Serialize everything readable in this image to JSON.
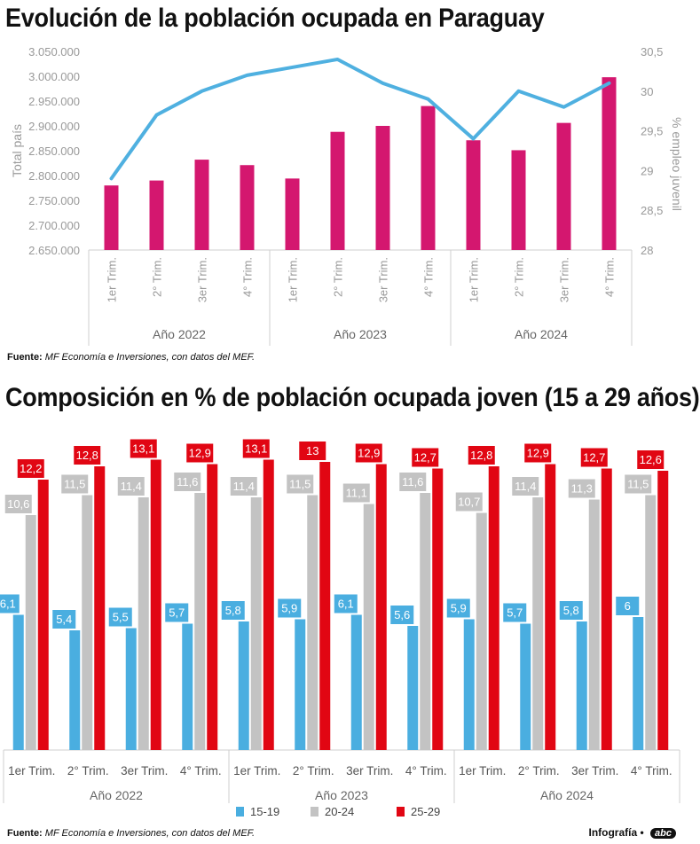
{
  "title1": "Evolución de la población ocupada en Paraguay",
  "title2": "Composición en % de población ocupada joven (15 a 29 años)",
  "source": {
    "label": "Fuente:",
    "text": "MF Economía e Inversiones, con datos del MEF."
  },
  "credit": {
    "label": "Infografía",
    "brand": "abc"
  },
  "chart_data": [
    {
      "type": "bar",
      "categories": [
        "1er Trim.",
        "2° Trim.",
        "3er Trim.",
        "4° Trim.",
        "1er Trim.",
        "2° Trim.",
        "3er Trim.",
        "4° Trim.",
        "1er Trim.",
        "2° Trim.",
        "3er Trim.",
        "4° Trim."
      ],
      "groups": [
        "Año 2022",
        "Año 2023",
        "Año 2024"
      ],
      "ylabel": "Total país",
      "y2label": "% empleo juvenil",
      "ylim": [
        2650000,
        3050000
      ],
      "y2lim": [
        28,
        30.5
      ],
      "yticks": [
        "3.050.000",
        "3.000.000",
        "2.950.000",
        "2.900.000",
        "2.850.000",
        "2.800.000",
        "2.750.000",
        "2.700.000",
        "2.650.000"
      ],
      "y2ticks": [
        "30,5",
        "30",
        "29,5",
        "29",
        "28,5",
        "28"
      ],
      "series": [
        {
          "type": "bar",
          "axis": "left",
          "color": "#d4176f",
          "values": [
            2780000,
            2790000,
            2832000,
            2821000,
            2794000,
            2888000,
            2900000,
            2940000,
            2871000,
            2851000,
            2906000,
            2998000
          ]
        },
        {
          "type": "line",
          "axis": "right",
          "color": "#4fb0e0",
          "values": [
            28.9,
            29.7,
            30.0,
            30.2,
            30.3,
            30.4,
            30.1,
            29.9,
            29.4,
            30.0,
            29.8,
            30.1
          ]
        }
      ],
      "grid": false
    },
    {
      "type": "bar",
      "categories": [
        "1er Trim.",
        "2° Trim.",
        "3er Trim.",
        "4° Trim.",
        "1er Trim.",
        "2° Trim.",
        "3er Trim.",
        "4° Trim.",
        "1er Trim.",
        "2° Trim.",
        "3er Trim.",
        "4° Trim."
      ],
      "groups": [
        "Año 2022",
        "Año 2023",
        "Año 2024"
      ],
      "series": [
        {
          "name": "15-19",
          "color": "#4aaee0",
          "values": [
            6.1,
            5.4,
            5.5,
            5.7,
            5.8,
            5.9,
            6.1,
            5.6,
            5.9,
            5.7,
            5.8,
            6
          ],
          "labels": [
            "6,1",
            "5,4",
            "5,5",
            "5,7",
            "5,8",
            "5,9",
            "6,1",
            "5,6",
            "5,9",
            "5,7",
            "5,8",
            "6"
          ]
        },
        {
          "name": "20-24",
          "color": "#c3c3c3",
          "values": [
            10.6,
            11.5,
            11.4,
            11.6,
            11.4,
            11.5,
            11.1,
            11.6,
            10.7,
            11.4,
            11.3,
            11.5
          ],
          "labels": [
            "10,6",
            "11,5",
            "11,4",
            "11,6",
            "11,4",
            "11,5",
            "11,1",
            "11,6",
            "10,7",
            "11,4",
            "11,3",
            "11,5"
          ]
        },
        {
          "name": "25-29",
          "color": "#e10613",
          "values": [
            12.2,
            12.8,
            13.1,
            12.9,
            13.1,
            13,
            12.9,
            12.7,
            12.8,
            12.9,
            12.7,
            12.6
          ],
          "labels": [
            "12,2",
            "12,8",
            "13,1",
            "12,9",
            "13,1",
            "13",
            "12,9",
            "12,7",
            "12,8",
            "12,9",
            "12,7",
            "12,6"
          ]
        }
      ],
      "legend": "bottom",
      "grid": false
    }
  ]
}
